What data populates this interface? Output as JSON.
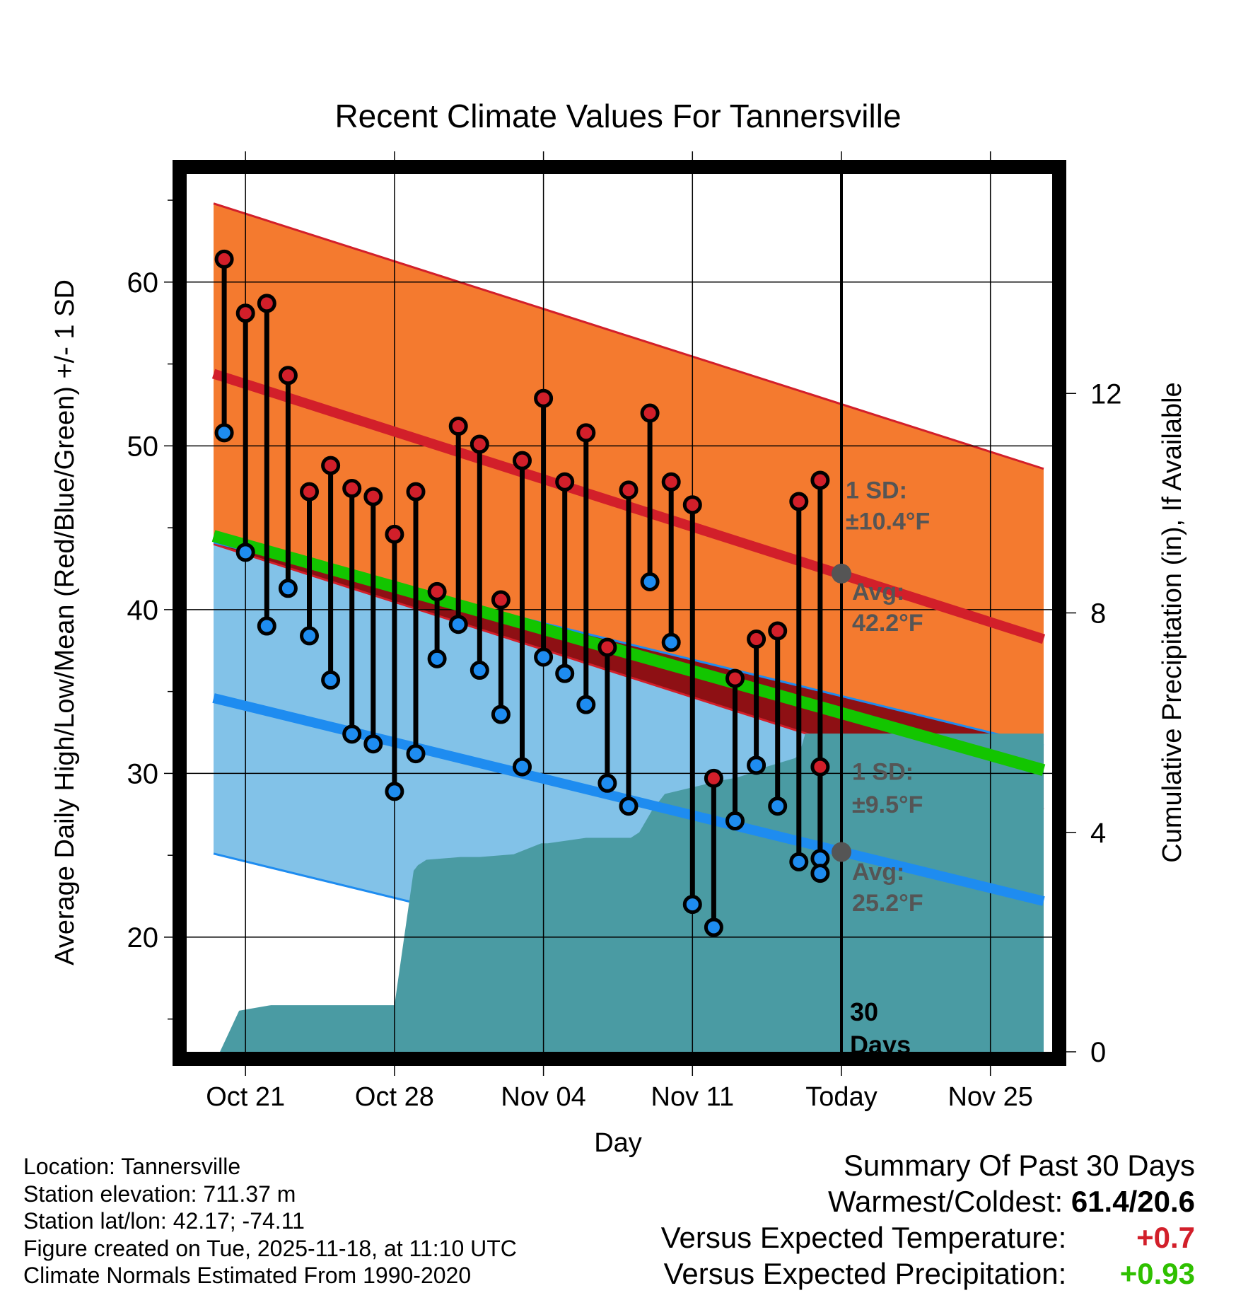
{
  "chart_data": {
    "type": "line",
    "title": "Recent Climate Values For Tannersville",
    "xlabel": "Day",
    "ylabel": "Average Daily High/Low/Mean (Red/Blue/Green) +/- 1 SD",
    "y2label": "Cumulative Precipitation (in), If Available",
    "x_range_days": [
      -29,
      10
    ],
    "ylim": [
      13.0,
      66.6
    ],
    "y_ticks": [
      20,
      30,
      40,
      50,
      60
    ],
    "y_minor_step": 5,
    "y2lim": [
      0,
      16
    ],
    "y2_ticks": [
      0,
      4,
      8,
      12
    ],
    "x_ticks": [
      {
        "day": -28,
        "label": "Oct 21"
      },
      {
        "day": -21,
        "label": "Oct 28"
      },
      {
        "day": -14,
        "label": "Nov 04"
      },
      {
        "day": -7,
        "label": "Nov 11"
      },
      {
        "day": 0,
        "label": "Today"
      },
      {
        "day": 7,
        "label": "Nov 25"
      }
    ],
    "normals": {
      "day": [
        -29.5,
        9.5
      ],
      "high_avg": [
        54.4,
        38.2
      ],
      "low_avg": [
        34.6,
        22.2
      ],
      "mean_avg": [
        44.5,
        30.2
      ],
      "high_sd": 10.4,
      "low_sd": 9.5
    },
    "series": [
      {
        "name": "Daily High",
        "color": "#d21f2a",
        "x": [
          -29,
          -28,
          -27,
          -26,
          -25,
          -24,
          -23,
          -22,
          -21,
          -20,
          -19,
          -18,
          -17,
          -16,
          -15,
          -14,
          -13,
          -12,
          -11,
          -10,
          -9,
          -8,
          -7,
          -6,
          -5,
          -4,
          -3,
          -2,
          -1
        ],
        "values": [
          61.4,
          58.1,
          58.7,
          54.3,
          47.2,
          48.8,
          47.4,
          46.9,
          44.6,
          47.2,
          41.1,
          51.2,
          50.1,
          40.6,
          49.1,
          52.9,
          47.8,
          50.8,
          37.7,
          47.3,
          52.0,
          47.8,
          46.4,
          29.7,
          35.8,
          38.2,
          38.7,
          46.6,
          47.9
        ]
      },
      {
        "name": "Daily Low",
        "color": "#1e8cf0",
        "x": [
          -29,
          -28,
          -27,
          -26,
          -25,
          -24,
          -23,
          -22,
          -21,
          -20,
          -19,
          -18,
          -17,
          -16,
          -15,
          -14,
          -13,
          -12,
          -11,
          -10,
          -9,
          -8,
          -7,
          -6,
          -5,
          -4,
          -3,
          -2,
          -1
        ],
        "values": [
          50.8,
          43.5,
          39.0,
          41.3,
          38.4,
          35.7,
          32.4,
          31.8,
          28.9,
          31.2,
          37.0,
          39.1,
          36.3,
          33.6,
          30.4,
          37.1,
          36.1,
          34.2,
          29.4,
          28.0,
          41.7,
          38.0,
          22.0,
          20.6,
          27.1,
          30.5,
          28.0,
          24.6,
          24.8
        ]
      },
      {
        "name": "Partial Day",
        "color": "#d21f2a",
        "x": [
          -1
        ],
        "high": [
          30.4
        ],
        "low": [
          23.9
        ]
      },
      {
        "name": "Cumulative Precipitation",
        "color": "#4a9ba3",
        "x": [
          -29.2,
          -28.3,
          -26.8,
          -21,
          -20.1,
          -19.9,
          -19.5,
          -17.9,
          -17,
          -15.4,
          -14.1,
          -13.8,
          -12,
          -11.3,
          -9.9,
          -9.5,
          -8.9,
          -8.3,
          -5.6,
          -4.9,
          -4.1,
          -3.9,
          -2.2,
          -2.0,
          -1.7,
          9.5
        ],
        "values": [
          0,
          0.75,
          0.85,
          0.85,
          3.3,
          3.4,
          3.5,
          3.55,
          3.55,
          3.6,
          3.8,
          3.8,
          3.9,
          3.9,
          3.9,
          4.0,
          4.4,
          4.7,
          4.95,
          5.0,
          5.1,
          5.15,
          5.35,
          5.4,
          5.8,
          5.8
        ]
      }
    ],
    "annotations": {
      "high_sd_title": "1 SD:",
      "high_sd_value": "±10.4°F",
      "high_avg_title": "Avg:",
      "high_avg_value": "42.2°F",
      "low_sd_title": "1 SD:",
      "low_sd_value": "±9.5°F",
      "low_avg_title": "Avg:",
      "low_avg_value": "25.2°F",
      "period_number": "30",
      "period_unit": "Days"
    },
    "today_marker": {
      "high": 42.2,
      "low": 25.2
    },
    "colors": {
      "high_band": "#f47a2f",
      "high_line": "#d21f2a",
      "low_band": "#82c2e8",
      "low_line": "#1e8cf0",
      "mean_line": "#13c500",
      "overlap": "#8e1014",
      "precip": "#4a9ba3"
    }
  },
  "footer": {
    "location": "Location: Tannersville",
    "elevation": "Station elevation: 711.37 m",
    "latlon": "Station lat/lon: 42.17; -74.11",
    "created": "Figure created on Tue, 2025-11-18, at 11:10 UTC",
    "normals": "Climate Normals Estimated From 1990-2020"
  },
  "summary": {
    "title": "Summary Of Past 30 Days",
    "warmest_label": "Warmest/Coldest:",
    "warmest_value": "61.4/20.6",
    "temp_label": "Versus Expected Temperature:",
    "temp_value": "+0.7",
    "temp_color": "#d21f2a",
    "precip_label": "Versus Expected Precipitation:",
    "precip_value": "+0.93",
    "precip_color": "#2fc000"
  }
}
